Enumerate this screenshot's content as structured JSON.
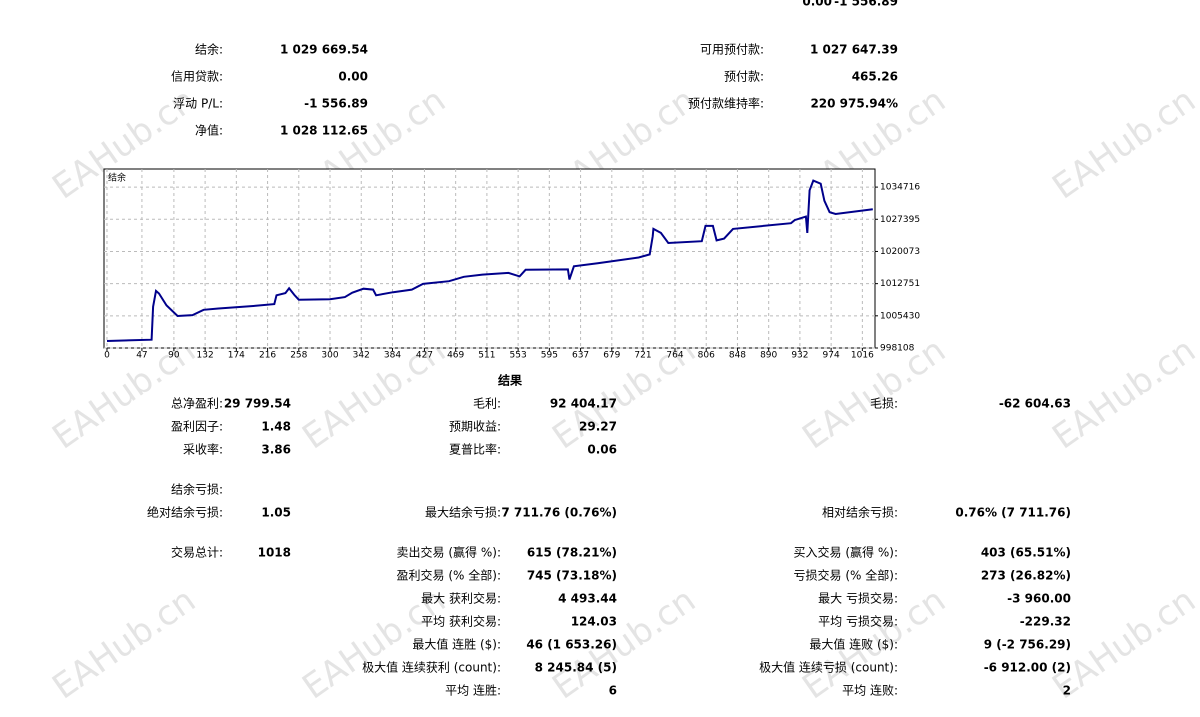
{
  "watermark": "EAHub.cn",
  "top_partial": [
    "0.00",
    "-1 556.89"
  ],
  "summary": {
    "left": [
      {
        "label": "结余:",
        "value": "1 029 669.54"
      },
      {
        "label": "信用贷款:",
        "value": "0.00"
      },
      {
        "label": "浮动 P/L:",
        "value": "-1 556.89"
      },
      {
        "label": "净值:",
        "value": "1 028 112.65"
      }
    ],
    "right": [
      {
        "label": "可用预付款:",
        "value": "1 027 647.39"
      },
      {
        "label": "预付款:",
        "value": "465.26"
      },
      {
        "label": "预付款维持率:",
        "value": "220 975.94%"
      }
    ]
  },
  "chart_data": {
    "type": "line",
    "x": [
      0,
      60,
      62,
      66,
      70,
      80,
      95,
      115,
      130,
      150,
      200,
      225,
      228,
      240,
      245,
      252,
      258,
      300,
      320,
      330,
      345,
      358,
      362,
      385,
      410,
      425,
      460,
      480,
      505,
      540,
      555,
      563,
      620,
      622,
      628,
      660,
      715,
      730,
      734,
      735,
      745,
      755,
      800,
      805,
      815,
      820,
      830,
      842,
      920,
      925,
      940,
      942,
      945,
      950,
      960,
      965,
      972,
      980,
      1030
    ],
    "series": [
      {
        "name": "结余",
        "color": "#00008b",
        "values": [
          999700,
          1000000,
          1007500,
          1011100,
          1010500,
          1007800,
          1005400,
          1005600,
          1006800,
          1007100,
          1007700,
          1008100,
          1010100,
          1010600,
          1011700,
          1010200,
          1009100,
          1009200,
          1009700,
          1010700,
          1011600,
          1011400,
          1010100,
          1010800,
          1011400,
          1012700,
          1013300,
          1014300,
          1014800,
          1015200,
          1014400,
          1015900,
          1016000,
          1013700,
          1016700,
          1017400,
          1018700,
          1019400,
          1023500,
          1025200,
          1024300,
          1022000,
          1022400,
          1025900,
          1025900,
          1022600,
          1023000,
          1025200,
          1026500,
          1027200,
          1028000,
          1024300,
          1034000,
          1036200,
          1035500,
          1031600,
          1029000,
          1028600,
          1029670
        ]
      }
    ],
    "xlim": [
      -4,
      1033
    ],
    "xticks": [
      0,
      47,
      90,
      132,
      174,
      216,
      258,
      300,
      342,
      384,
      427,
      469,
      511,
      553,
      595,
      637,
      679,
      721,
      764,
      806,
      848,
      890,
      932,
      974,
      1016
    ],
    "ylim": [
      998108,
      1038835
    ],
    "yticks": [
      998108,
      1005430,
      1012751,
      1020073,
      1027395,
      1034716
    ],
    "grid": true
  },
  "results": {
    "title": "结果",
    "rows": [
      {
        "left": {
          "label": "总净盈利:",
          "value": "29 799.54"
        },
        "middle": {
          "label": "毛利:",
          "value": "92 404.17"
        },
        "right": {
          "label": "毛损:",
          "value": "-62 604.63"
        }
      },
      {
        "left": {
          "label": "盈利因子:",
          "value": "1.48"
        },
        "middle": {
          "label": "预期收益:",
          "value": "29.27"
        }
      },
      {
        "left": {
          "label": "采收率:",
          "value": "3.86"
        },
        "middle": {
          "label": "夏普比率:",
          "value": "0.06"
        }
      },
      {
        "left": {
          "label": "结余亏损:"
        }
      },
      {
        "left": {
          "label": "绝对结余亏损:",
          "value": "1.05"
        },
        "middle": {
          "label": "最大结余亏损:",
          "value": "7 711.76 (0.76%)"
        },
        "right": {
          "label": "相对结余亏损:",
          "value": "0.76% (7 711.76)"
        }
      },
      {
        "left": {
          "label": "交易总计:",
          "value": "1018"
        },
        "middle": {
          "label": "卖出交易 (赢得 %):",
          "value": "615 (78.21%)"
        },
        "right": {
          "label": "买入交易 (赢得 %):",
          "value": "403 (65.51%)"
        }
      },
      {
        "middle": {
          "label": "盈利交易 (% 全部):",
          "value": "745 (73.18%)"
        },
        "right": {
          "label": "亏损交易 (% 全部):",
          "value": "273 (26.82%)"
        }
      },
      {
        "middle": {
          "label": "最大 获利交易:",
          "value": "4 493.44"
        },
        "right": {
          "label": "最大 亏损交易:",
          "value": "-3 960.00"
        }
      },
      {
        "middle": {
          "label": "平均 获利交易:",
          "value": "124.03"
        },
        "right": {
          "label": "平均 亏损交易:",
          "value": "-229.32"
        }
      },
      {
        "middle": {
          "label": "最大值 连胜 ($):",
          "value": "46 (1 653.26)"
        },
        "right": {
          "label": "最大值 连败 ($):",
          "value": "9 (-2 756.29)"
        }
      },
      {
        "middle": {
          "label": "极大值 连续获利 (count):",
          "value": "8 245.84 (5)"
        },
        "right": {
          "label": "极大值 连续亏损 (count):",
          "value": "-6 912.00 (2)"
        }
      },
      {
        "middle": {
          "label": "平均 连胜:",
          "value": "6"
        },
        "right": {
          "label": "平均 连败:",
          "value": "2"
        }
      }
    ]
  }
}
